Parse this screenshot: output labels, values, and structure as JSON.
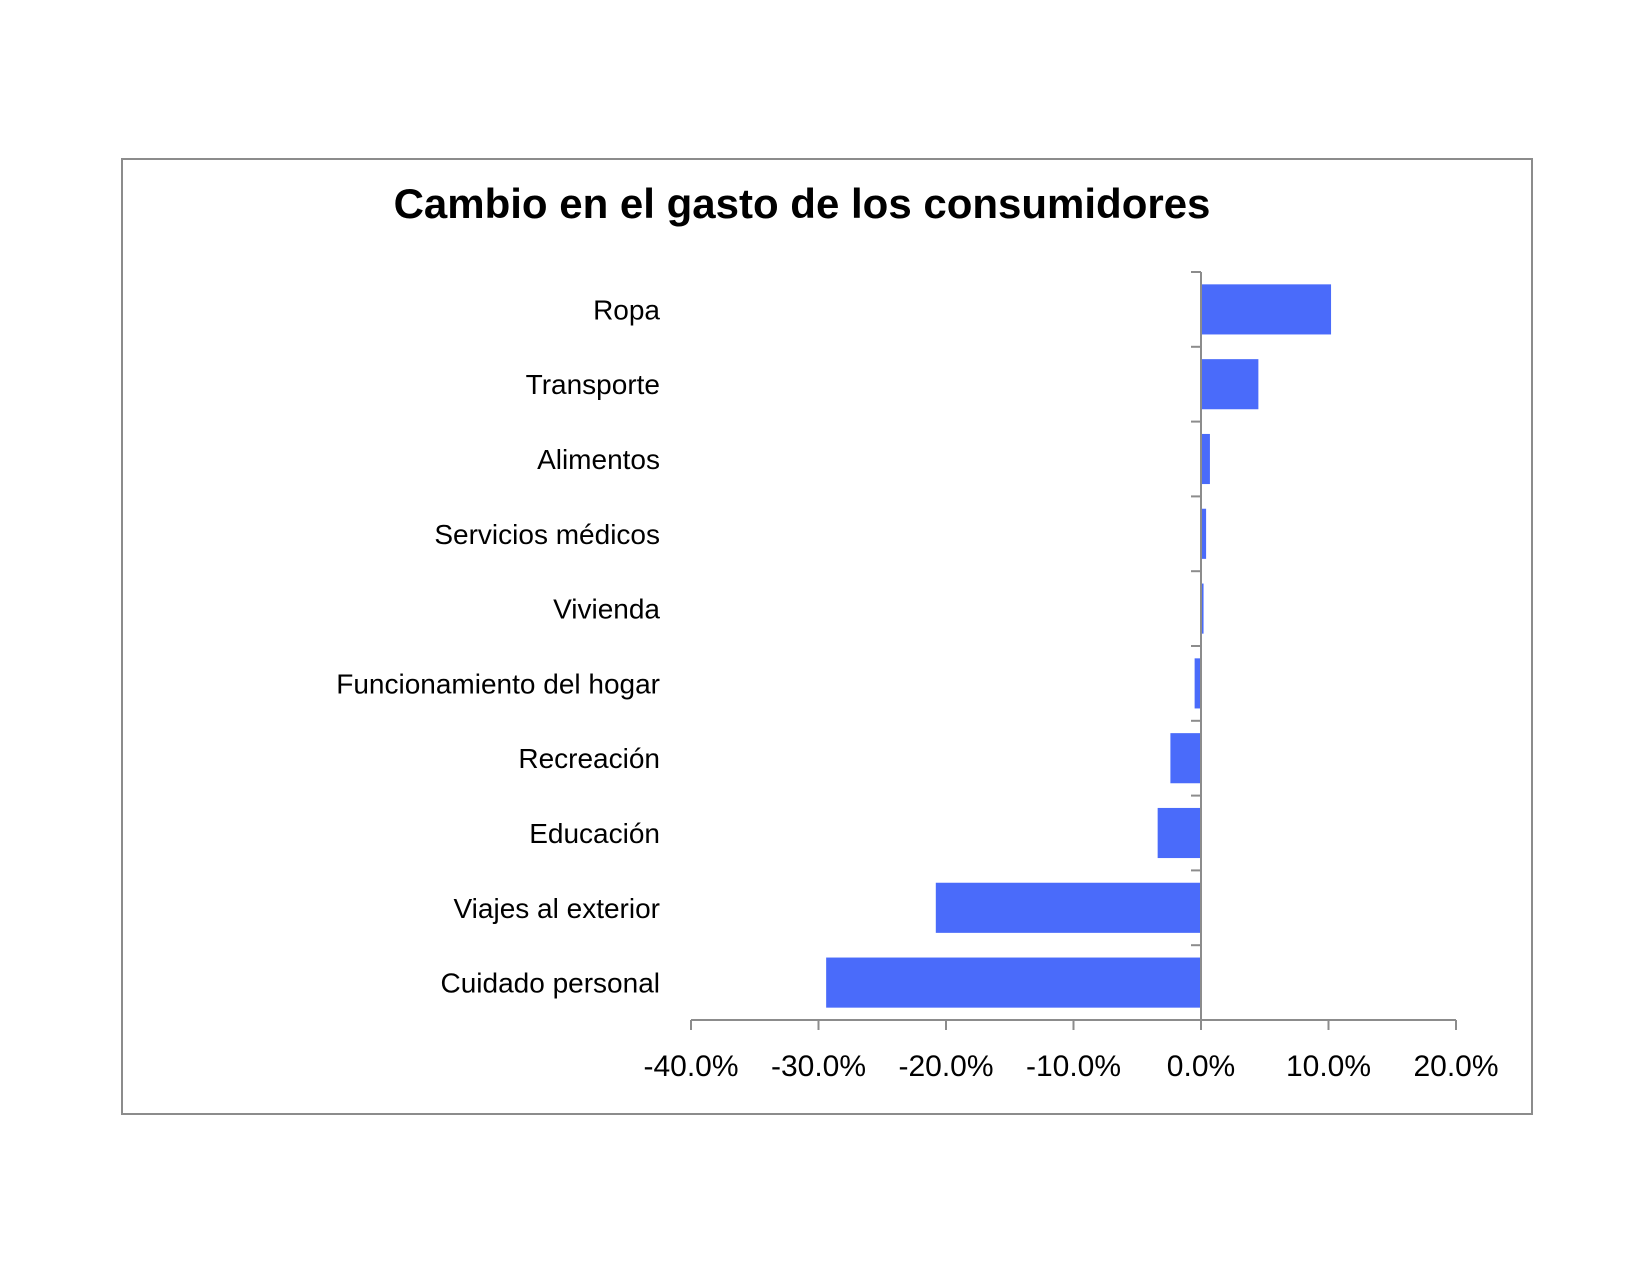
{
  "chart_data": {
    "type": "bar",
    "orientation": "horizontal",
    "title": "Cambio en el gasto de los consumidores",
    "xlabel": "",
    "ylabel": "",
    "categories": [
      "Ropa",
      "Transporte",
      "Alimentos",
      "Servicios médicos",
      "Vivienda",
      "Funcionamiento del hogar",
      "Recreación",
      "Educación",
      "Viajes al exterior",
      "Cuidado personal"
    ],
    "values": [
      10.2,
      4.5,
      0.7,
      0.4,
      0.2,
      -0.5,
      -2.4,
      -3.4,
      -20.8,
      -29.4
    ],
    "xlim": [
      -40,
      20
    ],
    "xticks": [
      "-40.0%",
      "-30.0%",
      "-20.0%",
      "-10.0%",
      "0.0%",
      "10.0%",
      "20.0%"
    ],
    "xtick_values": [
      -40,
      -30,
      -20,
      -10,
      0,
      10,
      20
    ],
    "bar_color": "#4a6bfa",
    "axis_color": "#8c8c8c",
    "grid": false,
    "legend": "none"
  }
}
